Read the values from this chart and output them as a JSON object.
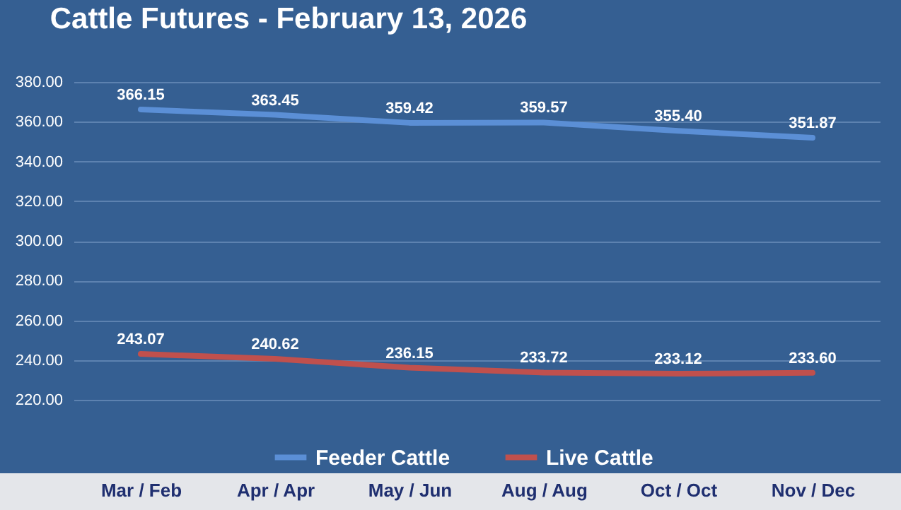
{
  "chart_data": {
    "type": "line",
    "title": "Cattle Futures - February 13, 2026",
    "categories": [
      "Mar / Feb",
      "Apr / Apr",
      "May / Jun",
      "Aug / Aug",
      "Oct / Oct",
      "Nov / Dec"
    ],
    "series": [
      {
        "name": "Feeder Cattle",
        "color": "#5b8fd6",
        "values": [
          366.15,
          363.45,
          359.42,
          359.57,
          355.4,
          351.87
        ],
        "value_labels": [
          "366.15",
          "363.45",
          "359.42",
          "359.57",
          "355.40",
          "351.87"
        ]
      },
      {
        "name": "Live Cattle",
        "color": "#c0504d",
        "values": [
          243.07,
          240.62,
          236.15,
          233.72,
          233.12,
          233.6
        ],
        "value_labels": [
          "243.07",
          "240.62",
          "236.15",
          "233.72",
          "233.12",
          "233.60"
        ]
      }
    ],
    "ylim": [
      220,
      380
    ],
    "yticks": [
      {
        "value": 220,
        "label": "220.00"
      },
      {
        "value": 240,
        "label": "240.00"
      },
      {
        "value": 260,
        "label": "260.00"
      },
      {
        "value": 280,
        "label": "280.00"
      },
      {
        "value": 300,
        "label": "300.00"
      },
      {
        "value": 320,
        "label": "320.00"
      },
      {
        "value": 340,
        "label": "340.00"
      },
      {
        "value": 360,
        "label": "360.00"
      },
      {
        "value": 380,
        "label": "380.00"
      }
    ],
    "grid": "y",
    "legend": "bottom",
    "data_labels": true
  }
}
